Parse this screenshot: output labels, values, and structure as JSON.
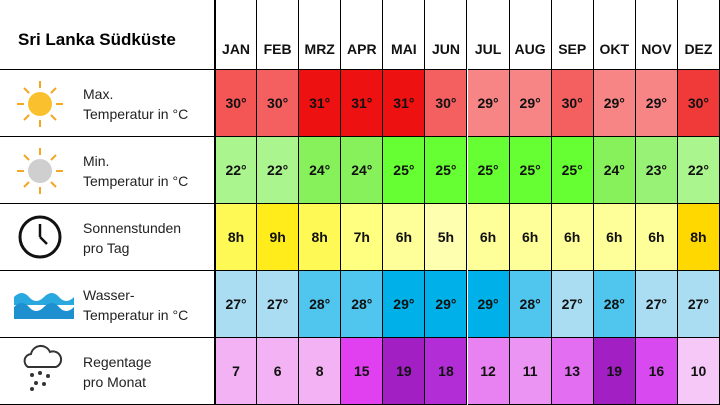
{
  "title": "Sri Lanka Südküste",
  "months": [
    "JAN",
    "FEB",
    "MRZ",
    "APR",
    "MAI",
    "JUN",
    "JUL",
    "AUG",
    "SEP",
    "OKT",
    "NOV",
    "DEZ"
  ],
  "rows": [
    {
      "label": [
        "Max.",
        "Temperatur in °C"
      ],
      "values": [
        "30°",
        "30°",
        "31°",
        "31°",
        "31°",
        "30°",
        "29°",
        "29°",
        "30°",
        "29°",
        "29°",
        "30°"
      ],
      "colors": [
        "#f45555",
        "#f45f5f",
        "#ee1111",
        "#ee1111",
        "#ee1111",
        "#f45f5f",
        "#f88585",
        "#f88585",
        "#f45f5f",
        "#f88585",
        "#f88585",
        "#f03a3a"
      ]
    },
    {
      "label": [
        "Min.",
        "Temperatur in °C"
      ],
      "values": [
        "22°",
        "22°",
        "24°",
        "24°",
        "25°",
        "25°",
        "25°",
        "25°",
        "25°",
        "24°",
        "23°",
        "22°"
      ],
      "colors": [
        "#aaf58e",
        "#aaf58e",
        "#86f15a",
        "#86f15a",
        "#66ff33",
        "#66ff33",
        "#66ff33",
        "#66ff33",
        "#66ff33",
        "#86f15a",
        "#98f275",
        "#aaf58e"
      ]
    },
    {
      "label": [
        "Sonnenstunden",
        "pro Tag"
      ],
      "values": [
        "8h",
        "9h",
        "8h",
        "7h",
        "6h",
        "5h",
        "6h",
        "6h",
        "6h",
        "6h",
        "6h",
        "8h"
      ],
      "colors": [
        "#fff955",
        "#ffec1a",
        "#fff955",
        "#ffff80",
        "#ffff99",
        "#ffffb0",
        "#ffff99",
        "#ffff99",
        "#ffff99",
        "#ffff99",
        "#ffff99",
        "#ffd800"
      ]
    },
    {
      "label": [
        "Wasser-",
        "Temperatur in °C"
      ],
      "values": [
        "27°",
        "27°",
        "28°",
        "28°",
        "29°",
        "29°",
        "29°",
        "28°",
        "27°",
        "28°",
        "27°",
        "27°"
      ],
      "colors": [
        "#aadcf2",
        "#aadcf2",
        "#50c6ef",
        "#50c6ef",
        "#00b0e8",
        "#00b0e8",
        "#00b0e8",
        "#50c6ef",
        "#aadcf2",
        "#50c6ef",
        "#aadcf2",
        "#aadcf2"
      ]
    },
    {
      "label": [
        "Regentage",
        "pro Monat"
      ],
      "values": [
        "7",
        "6",
        "8",
        "15",
        "19",
        "18",
        "12",
        "11",
        "13",
        "19",
        "16",
        "10"
      ],
      "colors": [
        "#f2b2f4",
        "#f2b2f4",
        "#f2b2f4",
        "#e040f0",
        "#a21fc4",
        "#b22dd6",
        "#e882f2",
        "#ec94f4",
        "#e46ef2",
        "#a21fc4",
        "#d84af0",
        "#f6c8f7"
      ]
    }
  ]
}
